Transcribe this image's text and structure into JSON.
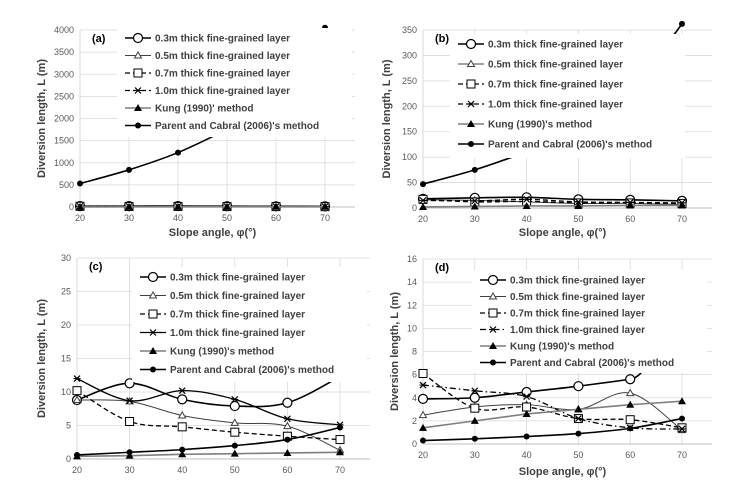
{
  "chart_data": [
    {
      "type": "line",
      "panel_label": "(a)",
      "xlabel": "Slope angle, φ(°)",
      "ylabel": "Diversion length, L (m)",
      "x": [
        20,
        30,
        40,
        50,
        60,
        70
      ],
      "xticks": [
        "20",
        "30",
        "40",
        "50",
        "60",
        "70"
      ],
      "ylim": [
        0,
        4000
      ],
      "yticks": [
        "0",
        "500",
        "1000",
        "1500",
        "2000",
        "2500",
        "3000",
        "3500",
        "4000"
      ],
      "grid": true,
      "legend_position": "top-left",
      "series": [
        {
          "name": "0.3m thick fine-grained layer",
          "values": [
            19,
            20,
            21,
            18,
            16,
            14
          ]
        },
        {
          "name": "0.5m thick fine-grained layer",
          "values": [
            15,
            15,
            12,
            9,
            8,
            6
          ]
        },
        {
          "name": "0.7m thick fine-grained layer",
          "values": [
            16,
            12,
            13,
            10,
            9,
            8
          ]
        },
        {
          "name": "1.0m thick fine-grained layer",
          "values": [
            17,
            15,
            16,
            12,
            11,
            10
          ]
        },
        {
          "name": "Kung (1990)' method",
          "values": [
            2,
            3,
            4,
            4,
            5,
            5
          ]
        },
        {
          "name": "Parent and Cabral (2006)'s method",
          "values": [
            530,
            840,
            1230,
            1750,
            null,
            4050
          ]
        }
      ]
    },
    {
      "type": "line",
      "panel_label": "(b)",
      "xlabel": "Slope angle, φ(°)",
      "ylabel": "Diversion length, L (m)",
      "x": [
        20,
        30,
        40,
        50,
        60,
        70
      ],
      "xticks": [
        "20",
        "30",
        "40",
        "50",
        "60",
        "70"
      ],
      "ylim": [
        0,
        350
      ],
      "yticks": [
        "0",
        "50",
        "100",
        "150",
        "200",
        "250",
        "300",
        "350"
      ],
      "grid": true,
      "legend_position": "top-left",
      "series": [
        {
          "name": "0.3m thick fine-grained layer",
          "values": [
            18,
            20,
            21,
            17,
            16,
            14
          ]
        },
        {
          "name": "0.5m thick fine-grained layer",
          "values": [
            16,
            15,
            12,
            9,
            9,
            7
          ]
        },
        {
          "name": "0.7m thick fine-grained layer",
          "values": [
            17,
            12,
            13,
            10,
            10,
            9
          ]
        },
        {
          "name": "1.0m thick fine-grained layer",
          "values": [
            15,
            14,
            17,
            12,
            11,
            10
          ]
        },
        {
          "name": "Kung (1990)'s method",
          "values": [
            2,
            3,
            4,
            4,
            5,
            5
          ]
        },
        {
          "name": "Parent and Cabral (2006)'s method",
          "values": [
            47,
            75,
            110,
            null,
            null,
            362
          ]
        }
      ]
    },
    {
      "type": "line",
      "panel_label": "(c)",
      "xlabel": "",
      "ylabel": "Diversion length, L (m)",
      "x": [
        20,
        30,
        40,
        50,
        60,
        70
      ],
      "xticks": [
        "20",
        "30",
        "40",
        "50",
        "60",
        "70"
      ],
      "ylim": [
        0,
        30
      ],
      "yticks": [
        "0",
        "5",
        "10",
        "15",
        "20",
        "25",
        "30"
      ],
      "grid": true,
      "legend_position": "top-left",
      "series": [
        {
          "name": "0.3m thick fine-grained layer",
          "values": [
            8.8,
            11.3,
            8.9,
            7.9,
            8.4,
            12.3
          ]
        },
        {
          "name": "0.5m thick fine-grained layer",
          "values": [
            8.8,
            8.6,
            6.5,
            5.4,
            4.9,
            1.3
          ]
        },
        {
          "name": "0.7m thick fine-grained layer",
          "values": [
            10.2,
            5.6,
            4.8,
            4.0,
            3.4,
            2.9
          ]
        },
        {
          "name": "1.0m thick fine-grained layer",
          "values": [
            12.0,
            8.7,
            10.2,
            8.9,
            6.0,
            5.1
          ]
        },
        {
          "name": "Kung (1990)'s method",
          "values": [
            0.4,
            0.5,
            0.7,
            0.8,
            0.9,
            1.0
          ]
        },
        {
          "name": "Parent and Cabral (2006)'s method",
          "values": [
            0.6,
            1.0,
            1.4,
            2.0,
            2.9,
            4.7
          ]
        }
      ]
    },
    {
      "type": "line",
      "panel_label": "(d)",
      "xlabel": "Slope angle, φ(°)",
      "ylabel": "Diversion length, L (m)",
      "x": [
        20,
        30,
        40,
        50,
        60,
        70
      ],
      "xticks": [
        "20",
        "30",
        "40",
        "50",
        "60",
        "70"
      ],
      "ylim": [
        0,
        16
      ],
      "yticks": [
        "0",
        "2",
        "4",
        "6",
        "8",
        "10",
        "12",
        "14",
        "16"
      ],
      "grid": true,
      "legend_position": "top-left",
      "series": [
        {
          "name": "0.3m thick fine-grained layer",
          "values": [
            3.9,
            4.0,
            4.5,
            5.0,
            5.6,
            10.5
          ]
        },
        {
          "name": "0.5m thick fine-grained layer",
          "values": [
            2.5,
            3.2,
            3.4,
            3.0,
            4.4,
            1.2
          ]
        },
        {
          "name": "0.7m thick fine-grained layer",
          "values": [
            6.1,
            3.1,
            3.2,
            2.2,
            2.1,
            1.4
          ]
        },
        {
          "name": "1.0m thick fine-grained layer",
          "values": [
            5.1,
            4.6,
            4.1,
            2.2,
            1.4,
            1.3
          ]
        },
        {
          "name": "Kung (1990)'s method",
          "values": [
            1.4,
            2.0,
            2.6,
            3.0,
            3.4,
            3.7
          ]
        },
        {
          "name": "Parent and Cabral (2006)'s method",
          "values": [
            0.3,
            0.45,
            0.65,
            0.9,
            1.35,
            2.2
          ]
        }
      ]
    }
  ]
}
